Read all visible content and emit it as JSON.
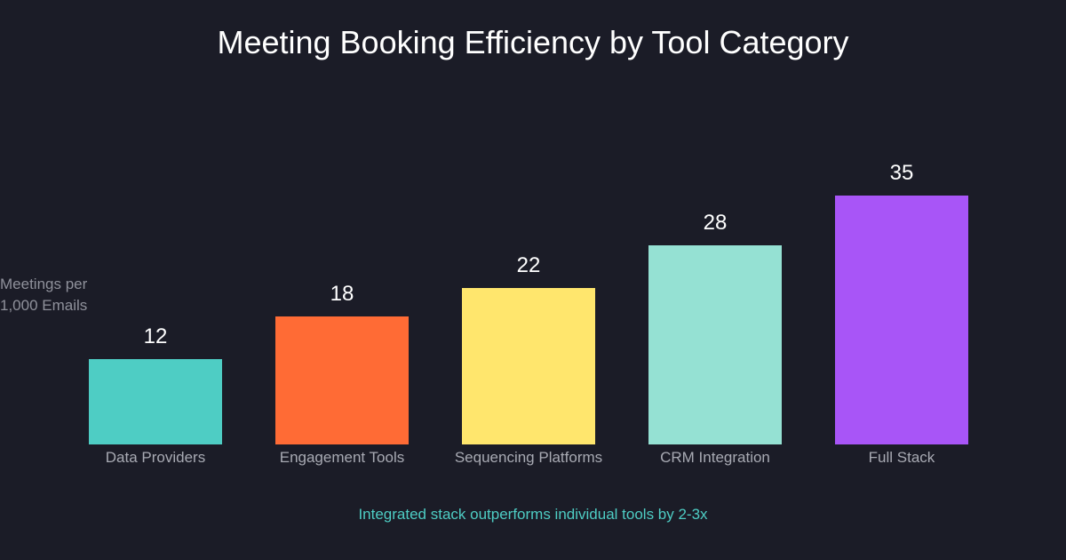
{
  "chart_data": {
    "type": "bar",
    "title": "Meeting Booking Efficiency by Tool Category",
    "xlabel": "",
    "ylabel_lines": [
      "Meetings per",
      "1,000 Emails"
    ],
    "categories": [
      "Data Providers",
      "Engagement Tools",
      "Sequencing Platforms",
      "CRM Integration",
      "Full Stack"
    ],
    "values": [
      12,
      18,
      22,
      28,
      35
    ],
    "colors": [
      "#4ecdc4",
      "#ff6b35",
      "#ffe66d",
      "#95e1d3",
      "#a855f7"
    ],
    "ylim": [
      0,
      35
    ],
    "grid": false,
    "annotation": "Integrated stack outperforms individual tools by 2-3x"
  }
}
